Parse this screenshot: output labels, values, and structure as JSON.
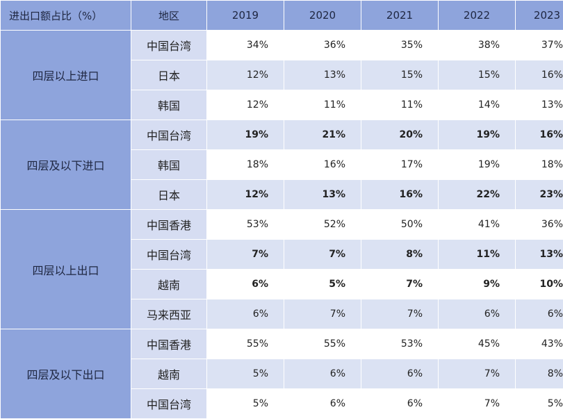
{
  "table": {
    "header": {
      "metric": "进出口额占比（%）",
      "region": "地区",
      "years": [
        "2019",
        "2020",
        "2021",
        "2022",
        "2023"
      ]
    },
    "groups": [
      {
        "label": "四层以上进口",
        "rows": [
          {
            "region": "中国台湾",
            "bold": false,
            "values": [
              "34%",
              "36%",
              "35%",
              "38%",
              "37%"
            ]
          },
          {
            "region": "日本",
            "bold": false,
            "values": [
              "12%",
              "13%",
              "15%",
              "15%",
              "16%"
            ]
          },
          {
            "region": "韩国",
            "bold": false,
            "values": [
              "12%",
              "11%",
              "11%",
              "14%",
              "13%"
            ]
          }
        ]
      },
      {
        "label": "四层及以下进口",
        "rows": [
          {
            "region": "中国台湾",
            "bold": true,
            "values": [
              "19%",
              "21%",
              "20%",
              "19%",
              "16%"
            ]
          },
          {
            "region": "韩国",
            "bold": false,
            "values": [
              "18%",
              "16%",
              "17%",
              "19%",
              "18%"
            ]
          },
          {
            "region": "日本",
            "bold": true,
            "values": [
              "12%",
              "13%",
              "16%",
              "22%",
              "23%"
            ]
          }
        ]
      },
      {
        "label": "四层以上出口",
        "rows": [
          {
            "region": "中国香港",
            "bold": false,
            "values": [
              "53%",
              "52%",
              "50%",
              "41%",
              "36%"
            ]
          },
          {
            "region": "中国台湾",
            "bold": true,
            "values": [
              "7%",
              "7%",
              "8%",
              "11%",
              "13%"
            ]
          },
          {
            "region": "越南",
            "bold": true,
            "values": [
              "6%",
              "5%",
              "7%",
              "9%",
              "10%"
            ]
          },
          {
            "region": "马来西亚",
            "bold": false,
            "values": [
              "6%",
              "7%",
              "7%",
              "6%",
              "6%"
            ]
          }
        ]
      },
      {
        "label": "四层及以下出口",
        "rows": [
          {
            "region": "中国香港",
            "bold": false,
            "values": [
              "55%",
              "55%",
              "53%",
              "45%",
              "43%"
            ]
          },
          {
            "region": "越南",
            "bold": false,
            "values": [
              "5%",
              "6%",
              "6%",
              "7%",
              "8%"
            ]
          },
          {
            "region": "中国台湾",
            "bold": false,
            "values": [
              "5%",
              "6%",
              "6%",
              "7%",
              "5%"
            ]
          }
        ]
      }
    ]
  }
}
